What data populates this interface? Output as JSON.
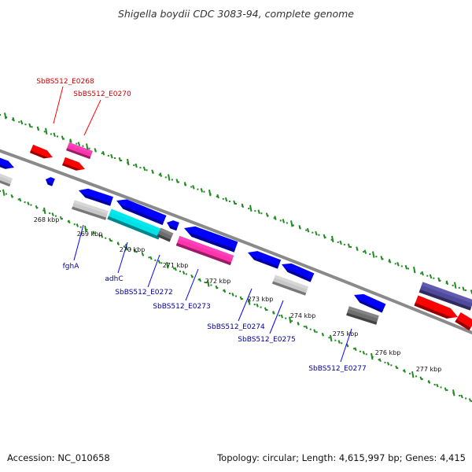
{
  "title": "Shigella boydii CDC 3083-94, complete genome",
  "footer": {
    "accession": "Accession: NC_010658",
    "summary": "Topology: circular; Length: 4,615,997 bp; Genes: 4,415"
  },
  "colors": {
    "backbone": "#8a8a8a",
    "dots": "#1f8a1f",
    "red": "#ff0000",
    "magenta": "#ff33aa",
    "blue": "#0000ff",
    "lightgray": "#c8c8c8",
    "cyan": "#00e0e6",
    "darkgray": "#6e6e6e",
    "purple": "#4f4a9c",
    "label_red": "#cc0000",
    "label_blue": "#000099"
  },
  "scale_labels": [
    "268 kbp",
    "269 kbp",
    "270 kbp",
    "271 kbp",
    "272 kbp",
    "273 kbp",
    "274 kbp",
    "275 kbp",
    "276 kbp",
    "277 kbp"
  ],
  "gene_labels": [
    {
      "text": "SbBS512_E0268",
      "color": "red"
    },
    {
      "text": "SbBS512_E0270",
      "color": "red"
    },
    {
      "text": "fghA",
      "color": "blue"
    },
    {
      "text": "adhC",
      "color": "blue"
    },
    {
      "text": "SbBS512_E0272",
      "color": "blue"
    },
    {
      "text": "SbBS512_E0273",
      "color": "blue"
    },
    {
      "text": "SbBS512_E0274",
      "color": "blue"
    },
    {
      "text": "SbBS512_E0275",
      "color": "blue"
    },
    {
      "text": "SbBS512_E0277",
      "color": "blue"
    }
  ]
}
